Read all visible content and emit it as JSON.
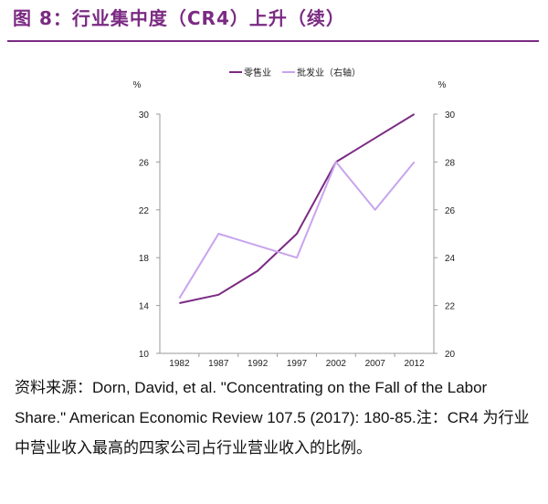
{
  "title": "图 8：行业集中度（CR4）上升（续）",
  "source_note": "资料来源：Dorn, David, et al. \"Concentrating on the Fall of the Labor Share.\" American Economic Review 107.5 (2017): 180-85.注：CR4 为行业中营业收入最高的四家公司占行业营业收入的比例。",
  "colors": {
    "title": "#7b2a83",
    "retail": "#7b2a83",
    "wholesale": "#c7a4ee",
    "axis": "#9a9a9a"
  },
  "chart_data": {
    "type": "line",
    "title": "",
    "x": [
      "1982",
      "1987",
      "1992",
      "1997",
      "2002",
      "2007",
      "2012"
    ],
    "xlabel": "",
    "ylabel_left": "%",
    "ylabel_right": "%",
    "ylim_left": [
      10,
      30
    ],
    "yticks_left": [
      "10",
      "14",
      "18",
      "22",
      "26",
      "30"
    ],
    "ylim_right": [
      20,
      30
    ],
    "yticks_right": [
      "20",
      "22",
      "24",
      "26",
      "28",
      "30"
    ],
    "legend_position": "top",
    "grid": false,
    "series": [
      {
        "name": "零售业",
        "axis": "left",
        "values": [
          14.2,
          14.9,
          16.9,
          20.0,
          26.0,
          28.0,
          30.0
        ]
      },
      {
        "name": "批发业（右轴）",
        "axis": "right",
        "values": [
          22.3,
          25.0,
          24.5,
          24.0,
          28.0,
          26.0,
          28.0
        ]
      }
    ]
  }
}
